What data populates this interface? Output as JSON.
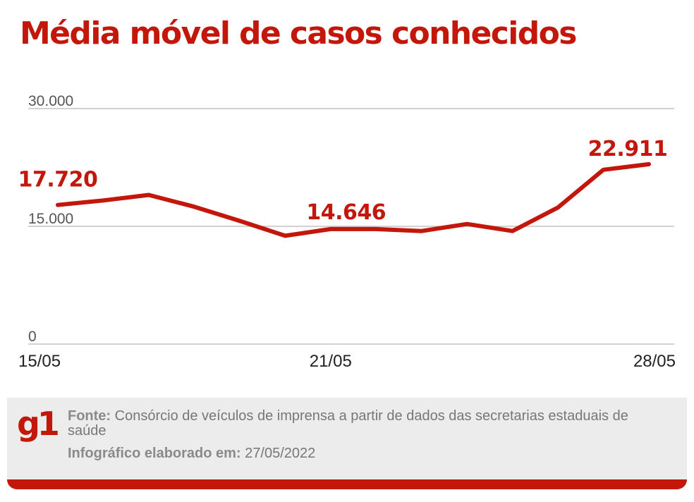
{
  "colors": {
    "accent": "#c4170c",
    "grid": "#b8b8b8",
    "axis_text": "#555555",
    "footer_bg": "#ececec"
  },
  "chart_data": {
    "type": "line",
    "title": "Média móvel de casos conhecidos",
    "x": [
      "15/05",
      "16/05",
      "17/05",
      "18/05",
      "19/05",
      "20/05",
      "21/05",
      "22/05",
      "23/05",
      "24/05",
      "25/05",
      "26/05",
      "27/05",
      "28/05"
    ],
    "series": [
      {
        "values": [
          17720,
          18300,
          19000,
          17500,
          15700,
          13800,
          14646,
          14650,
          14400,
          15300,
          14400,
          17400,
          22200,
          22911
        ]
      }
    ],
    "ylim": [
      0,
      30000
    ],
    "yticks": [
      {
        "value": 0,
        "label": "0"
      },
      {
        "value": 15000,
        "label": "15.000"
      },
      {
        "value": 30000,
        "label": "30.000"
      }
    ],
    "xtick_labels": [
      {
        "index": 0,
        "label": "15/05"
      },
      {
        "index": 6,
        "label": "21/05"
      },
      {
        "index": 13,
        "label": "28/05"
      }
    ],
    "annotations": [
      {
        "index": 0,
        "label": "17.720"
      },
      {
        "index": 6,
        "label": "14.646"
      },
      {
        "index": 13,
        "label": "22.911"
      }
    ],
    "grid": true,
    "legend": "none"
  },
  "footer": {
    "logo": "g1",
    "source_label": "Fonte:",
    "source_text": "Consórcio de veículos de imprensa a partir de dados das secretarias estaduais de saúde",
    "made_label": "Infográfico elaborado em:",
    "made_date": "27/05/2022"
  }
}
